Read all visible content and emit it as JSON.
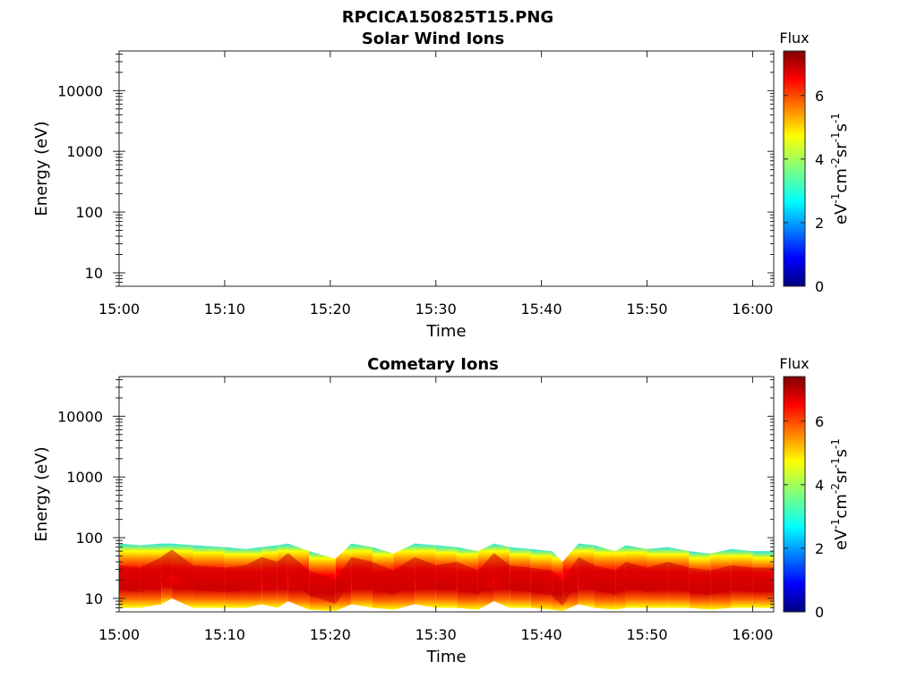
{
  "page_title": "RPCICA150825T15.PNG",
  "chart_data": [
    {
      "type": "heatmap",
      "title": "Solar Wind Ions",
      "xlabel": "Time",
      "ylabel": "Energy (eV)",
      "y_scale": "log",
      "ylim": [
        6,
        45000
      ],
      "x_ticks": [
        "15:00",
        "15:10",
        "15:20",
        "15:30",
        "15:40",
        "15:50",
        "16:00"
      ],
      "xlim_minutes": [
        0,
        62
      ],
      "y_ticks": [
        {
          "value": 10,
          "label": "10"
        },
        {
          "value": 100,
          "label": "100"
        },
        {
          "value": 1000,
          "label": "1000"
        },
        {
          "value": 10000,
          "label": "10000"
        }
      ],
      "colorbar": {
        "title": "Flux",
        "label": "eV-1cm-2sr-1s-1",
        "range": [
          0,
          7.4
        ],
        "ticks": [
          "0",
          "2",
          "4",
          "6"
        ]
      },
      "band": []
    },
    {
      "type": "heatmap",
      "title": "Cometary Ions",
      "xlabel": "Time",
      "ylabel": "Energy (eV)",
      "y_scale": "log",
      "ylim": [
        6,
        45000
      ],
      "x_ticks": [
        "15:00",
        "15:10",
        "15:20",
        "15:30",
        "15:40",
        "15:50",
        "16:00"
      ],
      "xlim_minutes": [
        0,
        62
      ],
      "y_ticks": [
        {
          "value": 10,
          "label": "10"
        },
        {
          "value": 100,
          "label": "100"
        },
        {
          "value": 1000,
          "label": "1000"
        },
        {
          "value": 10000,
          "label": "10000"
        }
      ],
      "colorbar": {
        "title": "Flux",
        "label": "eV-1cm-2sr-1s-1",
        "range": [
          0,
          7.4
        ],
        "ticks": [
          "0",
          "2",
          "4",
          "6"
        ]
      },
      "band": [
        {
          "t": 0,
          "peak": 22,
          "top": 80,
          "bottom": 7
        },
        {
          "t": 2,
          "peak": 20,
          "top": 75,
          "bottom": 7
        },
        {
          "t": 4,
          "peak": 30,
          "top": 80,
          "bottom": 8
        },
        {
          "t": 5,
          "peak": 40,
          "top": 80,
          "bottom": 10
        },
        {
          "t": 7,
          "peak": 22,
          "top": 75,
          "bottom": 7
        },
        {
          "t": 10,
          "peak": 20,
          "top": 70,
          "bottom": 7
        },
        {
          "t": 12,
          "peak": 22,
          "top": 65,
          "bottom": 7
        },
        {
          "t": 13.5,
          "peak": 30,
          "top": 70,
          "bottom": 8
        },
        {
          "t": 15,
          "peak": 25,
          "top": 75,
          "bottom": 7
        },
        {
          "t": 16,
          "peak": 35,
          "top": 80,
          "bottom": 9
        },
        {
          "t": 18,
          "peak": 18,
          "top": 60,
          "bottom": 6.5
        },
        {
          "t": 20.5,
          "peak": 13,
          "top": 45,
          "bottom": 6.2
        },
        {
          "t": 22,
          "peak": 30,
          "top": 80,
          "bottom": 8
        },
        {
          "t": 24,
          "peak": 25,
          "top": 70,
          "bottom": 7
        },
        {
          "t": 26,
          "peak": 18,
          "top": 55,
          "bottom": 6.5
        },
        {
          "t": 28,
          "peak": 30,
          "top": 80,
          "bottom": 8
        },
        {
          "t": 30,
          "peak": 22,
          "top": 75,
          "bottom": 7
        },
        {
          "t": 32,
          "peak": 25,
          "top": 70,
          "bottom": 7
        },
        {
          "t": 34,
          "peak": 18,
          "top": 60,
          "bottom": 6.5
        },
        {
          "t": 35.5,
          "peak": 35,
          "top": 80,
          "bottom": 9
        },
        {
          "t": 37,
          "peak": 22,
          "top": 70,
          "bottom": 7
        },
        {
          "t": 39,
          "peak": 20,
          "top": 65,
          "bottom": 7
        },
        {
          "t": 41,
          "peak": 18,
          "top": 60,
          "bottom": 6.5
        },
        {
          "t": 42,
          "peak": 12,
          "top": 40,
          "bottom": 6.2
        },
        {
          "t": 43.5,
          "peak": 30,
          "top": 80,
          "bottom": 8
        },
        {
          "t": 45,
          "peak": 22,
          "top": 75,
          "bottom": 7
        },
        {
          "t": 47,
          "peak": 18,
          "top": 60,
          "bottom": 6.5
        },
        {
          "t": 48,
          "peak": 25,
          "top": 75,
          "bottom": 7
        },
        {
          "t": 50,
          "peak": 20,
          "top": 65,
          "bottom": 7
        },
        {
          "t": 52,
          "peak": 25,
          "top": 70,
          "bottom": 7
        },
        {
          "t": 54,
          "peak": 20,
          "top": 60,
          "bottom": 7
        },
        {
          "t": 56,
          "peak": 18,
          "top": 55,
          "bottom": 6.5
        },
        {
          "t": 58,
          "peak": 22,
          "top": 65,
          "bottom": 7
        },
        {
          "t": 60,
          "peak": 20,
          "top": 60,
          "bottom": 7
        },
        {
          "t": 62,
          "peak": 20,
          "top": 60,
          "bottom": 7
        }
      ]
    }
  ]
}
